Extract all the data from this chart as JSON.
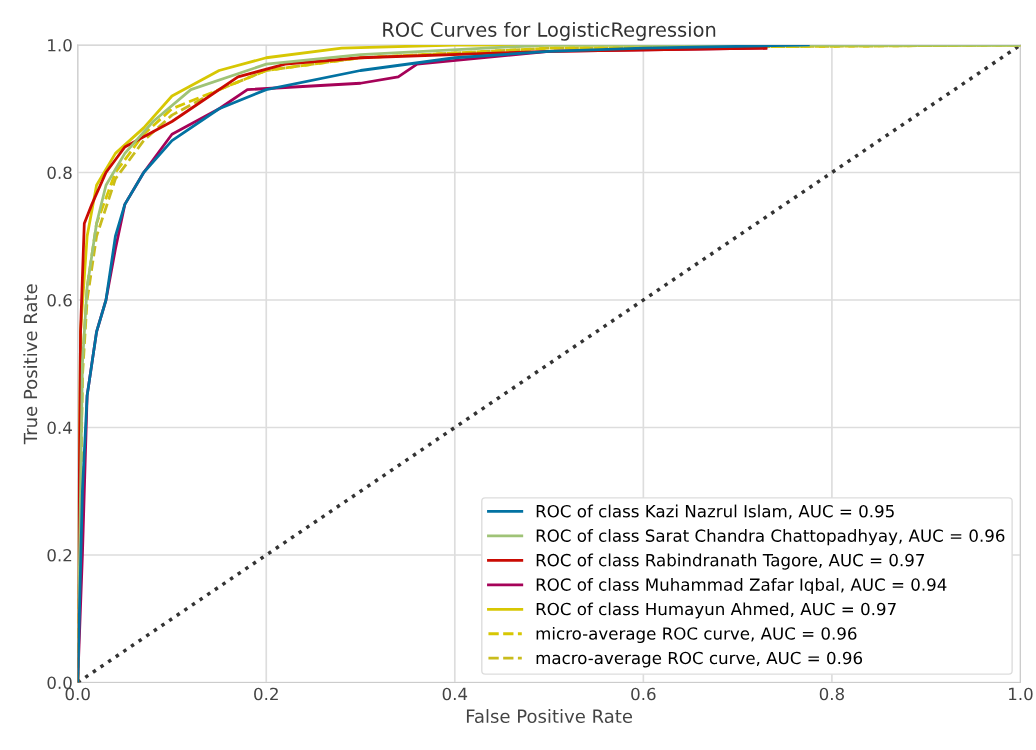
{
  "chart_data": {
    "type": "line",
    "title": "ROC Curves for LogisticRegression",
    "xlabel": "False Positive Rate",
    "ylabel": "True Positive Rate",
    "xlim": [
      0,
      1
    ],
    "ylim": [
      0,
      1
    ],
    "xticks": [
      {
        "value": 0,
        "label": "0.0"
      },
      0.2,
      0.4,
      0.6,
      0.8,
      {
        "value": 1,
        "label": "1.0"
      }
    ],
    "yticks": [
      {
        "value": 0,
        "label": "0.0"
      },
      0.2,
      0.4,
      0.6,
      0.8,
      {
        "value": 1,
        "label": "1.0"
      }
    ],
    "grid": true,
    "legend": "bottom right",
    "marker": "none",
    "series": [
      {
        "name": "ROC of class Kazi Nazrul Islam, AUC = 0.95",
        "color": "#0272a2",
        "line_style": "solid",
        "x": [
          0,
          0.005,
          0.01,
          0.02,
          0.03,
          0.04,
          0.05,
          0.07,
          0.1,
          0.15,
          0.2,
          0.3,
          0.4,
          0.5,
          0.6,
          0.775
        ],
        "values": [
          0,
          0.3,
          0.45,
          0.55,
          0.6,
          0.7,
          0.75,
          0.8,
          0.85,
          0.9,
          0.93,
          0.96,
          0.98,
          0.99,
          0.995,
          1.0
        ]
      },
      {
        "name": "ROC of class Sarat Chandra Chattopadhyay, AUC = 0.96",
        "color": "#9fc377",
        "line_style": "solid",
        "x": [
          0,
          0.005,
          0.01,
          0.02,
          0.03,
          0.05,
          0.08,
          0.12,
          0.2,
          0.3,
          0.5,
          1.0
        ],
        "values": [
          0,
          0.5,
          0.62,
          0.72,
          0.78,
          0.83,
          0.88,
          0.93,
          0.97,
          0.985,
          1.0,
          1.0
        ]
      },
      {
        "name": "ROC of class Rabindranath Tagore, AUC = 0.97",
        "color": "#ca0b03",
        "line_style": "solid",
        "x": [
          0,
          0.003,
          0.007,
          0.015,
          0.03,
          0.05,
          0.1,
          0.14,
          0.17,
          0.22,
          0.3,
          0.5,
          0.73
        ],
        "values": [
          0,
          0.55,
          0.72,
          0.75,
          0.8,
          0.84,
          0.88,
          0.92,
          0.95,
          0.97,
          0.98,
          0.99,
          0.995
        ]
      },
      {
        "name": "ROC of class Muhammad Zafar Iqbal, AUC = 0.94",
        "color": "#a50258",
        "line_style": "solid",
        "x": [
          0,
          0.005,
          0.01,
          0.02,
          0.03,
          0.04,
          0.05,
          0.07,
          0.1,
          0.15,
          0.18,
          0.3,
          0.34,
          0.36,
          0.5,
          0.73
        ],
        "values": [
          0,
          0.2,
          0.45,
          0.55,
          0.6,
          0.68,
          0.75,
          0.8,
          0.86,
          0.9,
          0.93,
          0.94,
          0.95,
          0.97,
          0.99,
          0.995
        ]
      },
      {
        "name": "ROC of class Humayun Ahmed, AUC = 0.97",
        "color": "#d7c703",
        "line_style": "solid",
        "x": [
          0,
          0.003,
          0.01,
          0.02,
          0.04,
          0.07,
          0.1,
          0.15,
          0.2,
          0.28,
          0.4,
          1.0
        ],
        "values": [
          0,
          0.55,
          0.7,
          0.78,
          0.83,
          0.87,
          0.92,
          0.96,
          0.98,
          0.995,
          1.0,
          1.0
        ]
      },
      {
        "name": "micro-average ROC curve, AUC = 0.96",
        "color": "#d7c703",
        "line_style": "dashed",
        "x": [
          0,
          0.005,
          0.01,
          0.02,
          0.04,
          0.07,
          0.1,
          0.15,
          0.2,
          0.3,
          0.5,
          1.0
        ],
        "values": [
          0,
          0.5,
          0.62,
          0.72,
          0.8,
          0.86,
          0.9,
          0.93,
          0.96,
          0.98,
          0.995,
          1.0
        ]
      },
      {
        "name": "macro-average ROC curve, AUC = 0.96",
        "color": "#c9bc1c",
        "line_style": "dashed",
        "x": [
          0,
          0.005,
          0.01,
          0.02,
          0.04,
          0.07,
          0.1,
          0.15,
          0.2,
          0.3,
          0.5,
          1.0
        ],
        "values": [
          0,
          0.48,
          0.6,
          0.7,
          0.79,
          0.85,
          0.89,
          0.93,
          0.96,
          0.98,
          0.995,
          1.0
        ]
      },
      {
        "color": "#333333",
        "line_style": "dotted",
        "x": [
          0,
          1
        ],
        "values": [
          0,
          1
        ]
      }
    ]
  }
}
